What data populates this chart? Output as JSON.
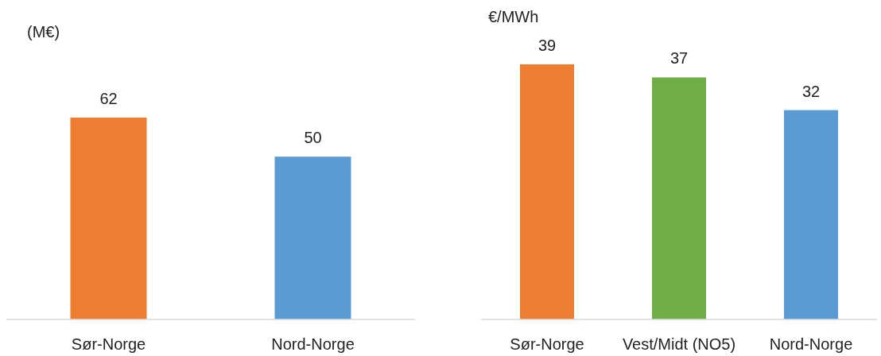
{
  "chart_data": [
    {
      "type": "bar",
      "ylabel": "(M€)",
      "categories": [
        "Sør-Norge",
        "Nord-Norge"
      ],
      "values": [
        62,
        50
      ],
      "colors": [
        "#ed7d31",
        "#5b9bd5"
      ],
      "data_labels": true
    },
    {
      "type": "bar",
      "ylabel": "€/MWh",
      "categories": [
        "Sør-Norge",
        "Vest/Midt (NO5)",
        "Nord-Norge"
      ],
      "values": [
        39,
        37,
        32
      ],
      "colors": [
        "#ed7d31",
        "#70ad47",
        "#5b9bd5"
      ],
      "data_labels": true
    }
  ]
}
